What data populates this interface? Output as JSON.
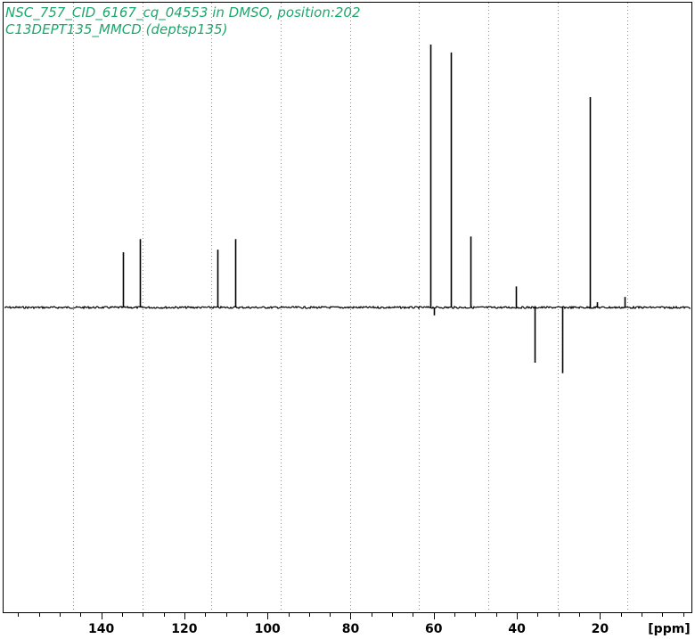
{
  "header": {
    "line1": "NSC_757_CID_6167_cq_04553 in DMSO, position:202",
    "line2": "C13DEPT135_MMCD (deptsp135)"
  },
  "colors": {
    "title": "#1ea86e",
    "spectrum": "#000000",
    "grid": "#8c8c8c",
    "frame": "#000000"
  },
  "chart_data": {
    "type": "line",
    "title": "",
    "xlabel": "[ppm]",
    "ylabel": "",
    "xlim": [
      163.5,
      -2.0
    ],
    "x_reversed": true,
    "ylim": [
      -1.25,
      1.03
    ],
    "x_ticks": [
      140,
      120,
      100,
      80,
      60,
      40,
      20
    ],
    "x_tick_labels": [
      "140",
      "120",
      "100",
      "80",
      "60",
      "40",
      "20"
    ],
    "x_minor_step": 5,
    "gridlines_x": [
      146.8,
      130.1,
      113.5,
      96.8,
      80.1,
      63.5,
      46.8,
      30.1,
      13.5
    ],
    "peaks": [
      {
        "ppm": 134.7,
        "intensity": 0.21
      },
      {
        "ppm": 130.6,
        "intensity": 0.26
      },
      {
        "ppm": 112.0,
        "intensity": 0.22
      },
      {
        "ppm": 107.8,
        "intensity": 0.26
      },
      {
        "ppm": 60.9,
        "intensity": 1.0
      },
      {
        "ppm": 59.9,
        "intensity": -0.03
      },
      {
        "ppm": 55.9,
        "intensity": 0.97
      },
      {
        "ppm": 51.1,
        "intensity": 0.27
      },
      {
        "ppm": 40.2,
        "intensity": 0.08
      },
      {
        "ppm": 35.7,
        "intensity": -0.21
      },
      {
        "ppm": 29.0,
        "intensity": -0.25
      },
      {
        "ppm": 22.5,
        "intensity": 0.8
      },
      {
        "ppm": 20.8,
        "intensity": 0.02
      },
      {
        "ppm": 14.1,
        "intensity": 0.04
      }
    ]
  }
}
